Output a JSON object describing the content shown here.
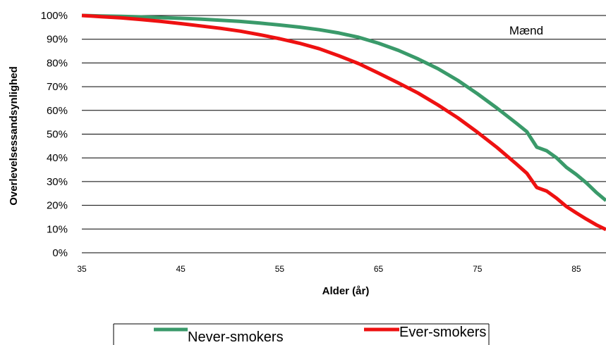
{
  "chart_data": {
    "type": "line",
    "xlabel": "Alder (år)",
    "ylabel": "Overlevelsessandsynlighed",
    "xlim": [
      35,
      88
    ],
    "ylim": [
      0,
      100
    ],
    "x_ticks": [
      "35",
      "45",
      "55",
      "65",
      "75",
      "85"
    ],
    "y_ticks": [
      "0%",
      "10%",
      "20%",
      "30%",
      "40%",
      "50%",
      "60%",
      "70%",
      "80%",
      "90%",
      "100%"
    ],
    "grid": "horizontal",
    "legend_position": "bottom",
    "annotation": "Mænd",
    "colors": {
      "never": "#3a9a6a",
      "ever": "#ee1111",
      "grid": "#000000"
    },
    "series": [
      {
        "name": "Never-smokers",
        "x": [
          35,
          37,
          39,
          41,
          43,
          45,
          47,
          49,
          51,
          53,
          55,
          57,
          59,
          61,
          63,
          65,
          67,
          69,
          71,
          73,
          75,
          77,
          79,
          80,
          81,
          82,
          83,
          84,
          85,
          86,
          87,
          88
        ],
        "y": [
          100,
          99.8,
          99.6,
          99.4,
          99.1,
          98.8,
          98.5,
          98.0,
          97.5,
          96.8,
          96.0,
          95.1,
          94.0,
          92.6,
          90.8,
          88.3,
          85.3,
          81.7,
          77.6,
          72.7,
          67.0,
          60.9,
          54.4,
          51.0,
          44.5,
          43.0,
          40.0,
          36.0,
          33.0,
          29.5,
          25.5,
          22.0
        ]
      },
      {
        "name": "Ever-smokers",
        "x": [
          35,
          37,
          39,
          41,
          43,
          45,
          47,
          49,
          51,
          53,
          55,
          57,
          59,
          61,
          63,
          65,
          67,
          69,
          71,
          73,
          75,
          77,
          79,
          80,
          81,
          82,
          83,
          84,
          85,
          86,
          87,
          88
        ],
        "y": [
          100,
          99.5,
          99.0,
          98.3,
          97.5,
          96.6,
          95.6,
          94.6,
          93.4,
          91.9,
          90.2,
          88.3,
          86.0,
          83.0,
          79.7,
          75.7,
          71.6,
          67.3,
          62.3,
          56.9,
          50.8,
          44.3,
          37.2,
          33.5,
          27.5,
          26.0,
          23.0,
          19.5,
          16.8,
          14.2,
          11.8,
          9.8
        ]
      }
    ]
  }
}
